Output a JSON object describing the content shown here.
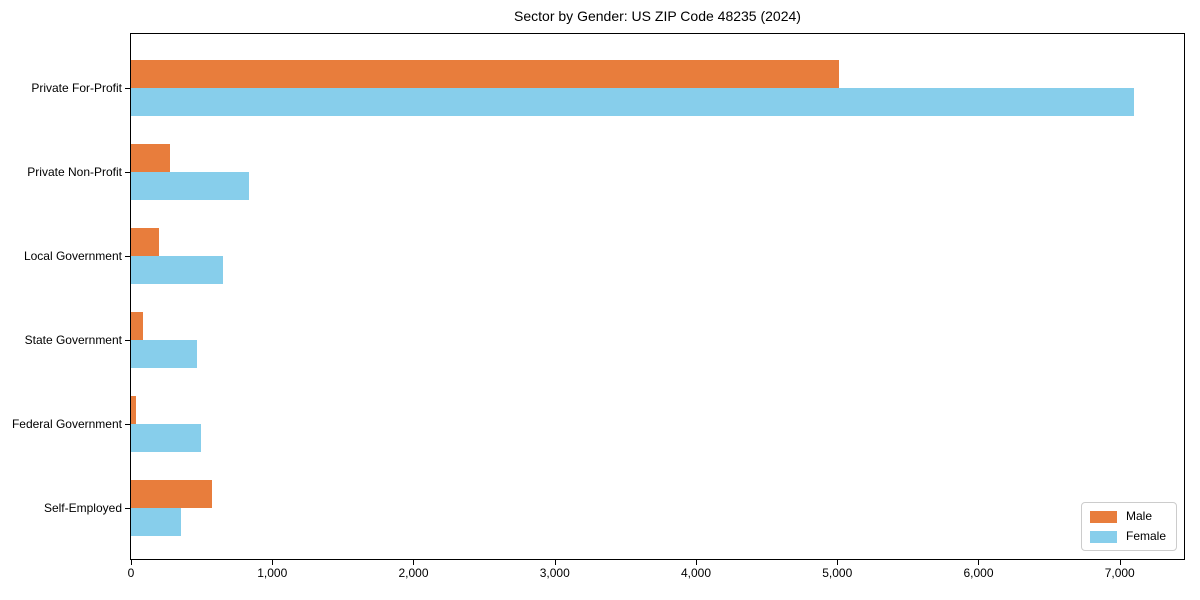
{
  "title": "Sector by Gender: US ZIP Code 48235 (2024)",
  "chart_data": {
    "type": "bar",
    "orientation": "horizontal",
    "title": "Sector by Gender: US ZIP Code 48235 (2024)",
    "xlabel": "",
    "ylabel": "",
    "categories": [
      "Private For-Profit",
      "Private Non-Profit",
      "Local Government",
      "State Government",
      "Federal Government",
      "Self-Employed"
    ],
    "series": [
      {
        "name": "Male",
        "color": "#E87D3C",
        "values": [
          5010,
          275,
          195,
          85,
          33,
          577
        ]
      },
      {
        "name": "Female",
        "color": "#87CEEB",
        "values": [
          7100,
          835,
          650,
          470,
          495,
          355
        ]
      }
    ],
    "xlim": [
      0,
      7455
    ],
    "xticks": [
      {
        "value": 0,
        "label": "0"
      },
      {
        "value": 1000,
        "label": "1,000"
      },
      {
        "value": 2000,
        "label": "2,000"
      },
      {
        "value": 3000,
        "label": "3,000"
      },
      {
        "value": 4000,
        "label": "4,000"
      },
      {
        "value": 5000,
        "label": "5,000"
      },
      {
        "value": 6000,
        "label": "6,000"
      },
      {
        "value": 7000,
        "label": "7,000"
      }
    ],
    "grid": false,
    "legend_position": "lower right",
    "colors": {
      "spine": "#000000",
      "legend_border": "#cccccc",
      "background": "#ffffff"
    }
  }
}
